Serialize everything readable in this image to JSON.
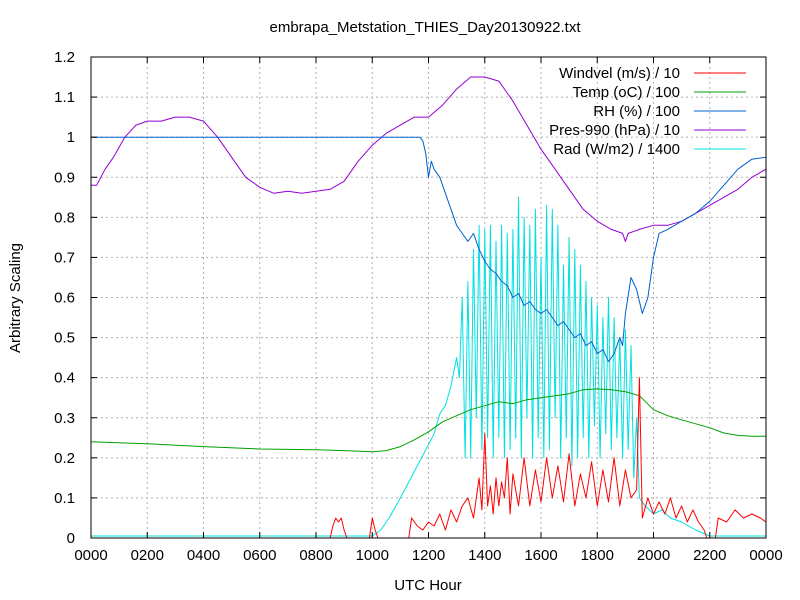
{
  "chart_data": {
    "type": "line",
    "title": "embrapa_Metstation_THIES_Day20130922.txt",
    "xlabel": "UTC Hour",
    "ylabel": "Arbitrary Scaling",
    "xlim": [
      0,
      24
    ],
    "ylim": [
      0,
      1.2
    ],
    "x_ticks": [
      "0000",
      "0200",
      "0400",
      "0600",
      "0800",
      "1000",
      "1200",
      "1400",
      "1600",
      "1800",
      "2000",
      "2200",
      "0000"
    ],
    "y_ticks": [
      "0",
      "0.1",
      "0.2",
      "0.3",
      "0.4",
      "0.5",
      "0.6",
      "0.7",
      "0.8",
      "0.9",
      "1",
      "1.1",
      "1.2"
    ],
    "grid": true,
    "legend_position": "top-right",
    "series": [
      {
        "name": "Windvel (m/s) / 10",
        "color": "#ff0000",
        "points": [
          [
            0,
            0
          ],
          [
            8.5,
            0
          ],
          [
            8.6,
            0.03
          ],
          [
            8.7,
            0.05
          ],
          [
            8.8,
            0.04
          ],
          [
            8.9,
            0.05
          ],
          [
            9.0,
            0.02
          ],
          [
            9.1,
            0
          ],
          [
            9.9,
            0
          ],
          [
            10.0,
            0.05
          ],
          [
            10.1,
            0.02
          ],
          [
            10.2,
            0
          ],
          [
            11.3,
            0
          ],
          [
            11.4,
            0.05
          ],
          [
            11.6,
            0.03
          ],
          [
            11.8,
            0.02
          ],
          [
            12.0,
            0.04
          ],
          [
            12.2,
            0.03
          ],
          [
            12.4,
            0.06
          ],
          [
            12.6,
            0.02
          ],
          [
            12.8,
            0.07
          ],
          [
            13.0,
            0.04
          ],
          [
            13.2,
            0.08
          ],
          [
            13.4,
            0.1
          ],
          [
            13.6,
            0.05
          ],
          [
            13.8,
            0.15
          ],
          [
            13.9,
            0.07
          ],
          [
            14.0,
            0.26
          ],
          [
            14.1,
            0.08
          ],
          [
            14.2,
            0.13
          ],
          [
            14.3,
            0.06
          ],
          [
            14.4,
            0.15
          ],
          [
            14.5,
            0.08
          ],
          [
            14.6,
            0.14
          ],
          [
            14.7,
            0.1
          ],
          [
            14.8,
            0.2
          ],
          [
            14.9,
            0.06
          ],
          [
            15.0,
            0.16
          ],
          [
            15.2,
            0.08
          ],
          [
            15.4,
            0.2
          ],
          [
            15.6,
            0.08
          ],
          [
            15.8,
            0.17
          ],
          [
            16.0,
            0.09
          ],
          [
            16.2,
            0.2
          ],
          [
            16.4,
            0.1
          ],
          [
            16.6,
            0.18
          ],
          [
            16.8,
            0.09
          ],
          [
            17.0,
            0.21
          ],
          [
            17.2,
            0.08
          ],
          [
            17.4,
            0.16
          ],
          [
            17.6,
            0.1
          ],
          [
            17.8,
            0.19
          ],
          [
            18.0,
            0.08
          ],
          [
            18.2,
            0.17
          ],
          [
            18.4,
            0.09
          ],
          [
            18.6,
            0.2
          ],
          [
            18.8,
            0.08
          ],
          [
            19.0,
            0.17
          ],
          [
            19.2,
            0.1
          ],
          [
            19.4,
            0.12
          ],
          [
            19.5,
            0.4
          ],
          [
            19.6,
            0.05
          ],
          [
            19.8,
            0.1
          ],
          [
            20.0,
            0.06
          ],
          [
            20.2,
            0.09
          ],
          [
            20.4,
            0.06
          ],
          [
            20.6,
            0.1
          ],
          [
            20.8,
            0.05
          ],
          [
            21.0,
            0.08
          ],
          [
            21.2,
            0.04
          ],
          [
            21.4,
            0.07
          ],
          [
            21.6,
            0.04
          ],
          [
            21.8,
            0.02
          ],
          [
            21.9,
            0
          ],
          [
            22.2,
            0
          ],
          [
            22.3,
            0.05
          ],
          [
            22.6,
            0.04
          ],
          [
            22.9,
            0.07
          ],
          [
            23.2,
            0.05
          ],
          [
            23.5,
            0.06
          ],
          [
            23.8,
            0.05
          ],
          [
            24,
            0.04
          ]
        ]
      },
      {
        "name": "Temp (oC) / 100",
        "color": "#00a000",
        "points": [
          [
            0,
            0.24
          ],
          [
            2,
            0.235
          ],
          [
            4,
            0.228
          ],
          [
            6,
            0.222
          ],
          [
            8,
            0.22
          ],
          [
            9,
            0.218
          ],
          [
            10,
            0.215
          ],
          [
            10.5,
            0.218
          ],
          [
            11,
            0.228
          ],
          [
            11.5,
            0.245
          ],
          [
            12,
            0.265
          ],
          [
            12.5,
            0.29
          ],
          [
            13,
            0.305
          ],
          [
            13.5,
            0.32
          ],
          [
            14,
            0.33
          ],
          [
            14.5,
            0.34
          ],
          [
            15,
            0.335
          ],
          [
            15.5,
            0.345
          ],
          [
            16,
            0.35
          ],
          [
            16.5,
            0.355
          ],
          [
            17,
            0.36
          ],
          [
            17.5,
            0.37
          ],
          [
            18,
            0.372
          ],
          [
            18.5,
            0.37
          ],
          [
            19,
            0.365
          ],
          [
            19.5,
            0.355
          ],
          [
            20,
            0.32
          ],
          [
            20.5,
            0.305
          ],
          [
            21,
            0.295
          ],
          [
            21.5,
            0.285
          ],
          [
            22,
            0.275
          ],
          [
            22.5,
            0.262
          ],
          [
            23,
            0.256
          ],
          [
            23.5,
            0.254
          ],
          [
            24,
            0.254
          ]
        ]
      },
      {
        "name": "RH (%) / 100",
        "color": "#0060d0",
        "points": [
          [
            0,
            1.0
          ],
          [
            11.7,
            1.0
          ],
          [
            11.8,
            0.99
          ],
          [
            11.9,
            0.96
          ],
          [
            12.0,
            0.9
          ],
          [
            12.1,
            0.94
          ],
          [
            12.2,
            0.92
          ],
          [
            12.4,
            0.9
          ],
          [
            12.6,
            0.86
          ],
          [
            12.8,
            0.82
          ],
          [
            13.0,
            0.78
          ],
          [
            13.2,
            0.76
          ],
          [
            13.4,
            0.74
          ],
          [
            13.6,
            0.76
          ],
          [
            13.8,
            0.72
          ],
          [
            14.0,
            0.69
          ],
          [
            14.2,
            0.67
          ],
          [
            14.4,
            0.66
          ],
          [
            14.6,
            0.64
          ],
          [
            14.8,
            0.63
          ],
          [
            15.0,
            0.6
          ],
          [
            15.2,
            0.61
          ],
          [
            15.4,
            0.58
          ],
          [
            15.6,
            0.59
          ],
          [
            15.8,
            0.57
          ],
          [
            16.0,
            0.56
          ],
          [
            16.2,
            0.57
          ],
          [
            16.4,
            0.55
          ],
          [
            16.6,
            0.53
          ],
          [
            16.8,
            0.54
          ],
          [
            17.0,
            0.52
          ],
          [
            17.2,
            0.5
          ],
          [
            17.4,
            0.51
          ],
          [
            17.6,
            0.48
          ],
          [
            17.8,
            0.49
          ],
          [
            18.0,
            0.46
          ],
          [
            18.2,
            0.47
          ],
          [
            18.4,
            0.44
          ],
          [
            18.6,
            0.46
          ],
          [
            18.8,
            0.5
          ],
          [
            18.9,
            0.48
          ],
          [
            19.0,
            0.56
          ],
          [
            19.2,
            0.65
          ],
          [
            19.4,
            0.62
          ],
          [
            19.6,
            0.56
          ],
          [
            19.8,
            0.6
          ],
          [
            20.0,
            0.7
          ],
          [
            20.2,
            0.76
          ],
          [
            20.5,
            0.77
          ],
          [
            21.0,
            0.79
          ],
          [
            21.5,
            0.81
          ],
          [
            22.0,
            0.84
          ],
          [
            22.5,
            0.88
          ],
          [
            23.0,
            0.92
          ],
          [
            23.5,
            0.945
          ],
          [
            24,
            0.95
          ]
        ]
      },
      {
        "name": "Pres-990 (hPa) / 10",
        "color": "#9400d3",
        "points": [
          [
            0,
            0.88
          ],
          [
            0.2,
            0.88
          ],
          [
            0.5,
            0.92
          ],
          [
            0.8,
            0.95
          ],
          [
            1.2,
            1.0
          ],
          [
            1.6,
            1.03
          ],
          [
            2.0,
            1.04
          ],
          [
            2.5,
            1.04
          ],
          [
            3.0,
            1.05
          ],
          [
            3.5,
            1.05
          ],
          [
            4.0,
            1.04
          ],
          [
            4.5,
            1.0
          ],
          [
            5.0,
            0.95
          ],
          [
            5.5,
            0.9
          ],
          [
            6.0,
            0.875
          ],
          [
            6.5,
            0.86
          ],
          [
            7.0,
            0.865
          ],
          [
            7.5,
            0.86
          ],
          [
            8.0,
            0.865
          ],
          [
            8.5,
            0.87
          ],
          [
            9.0,
            0.89
          ],
          [
            9.5,
            0.94
          ],
          [
            10.0,
            0.98
          ],
          [
            10.5,
            1.01
          ],
          [
            11.0,
            1.03
          ],
          [
            11.5,
            1.05
          ],
          [
            12.0,
            1.05
          ],
          [
            12.5,
            1.08
          ],
          [
            13.0,
            1.12
          ],
          [
            13.5,
            1.15
          ],
          [
            14.0,
            1.15
          ],
          [
            14.5,
            1.14
          ],
          [
            15.0,
            1.09
          ],
          [
            15.5,
            1.03
          ],
          [
            16.0,
            0.97
          ],
          [
            16.5,
            0.92
          ],
          [
            17.0,
            0.87
          ],
          [
            17.5,
            0.82
          ],
          [
            18.0,
            0.79
          ],
          [
            18.5,
            0.77
          ],
          [
            18.9,
            0.76
          ],
          [
            19.0,
            0.74
          ],
          [
            19.1,
            0.76
          ],
          [
            19.5,
            0.77
          ],
          [
            20.0,
            0.78
          ],
          [
            20.5,
            0.78
          ],
          [
            21.0,
            0.79
          ],
          [
            21.5,
            0.81
          ],
          [
            22.0,
            0.83
          ],
          [
            22.5,
            0.85
          ],
          [
            23.0,
            0.87
          ],
          [
            23.5,
            0.9
          ],
          [
            24,
            0.92
          ]
        ]
      },
      {
        "name": "Rad (W/m2) / 1400",
        "color": "#00e0e0",
        "points": [
          [
            0,
            0.005
          ],
          [
            10.0,
            0.005
          ],
          [
            10.3,
            0.02
          ],
          [
            10.6,
            0.05
          ],
          [
            11.0,
            0.1
          ],
          [
            11.3,
            0.14
          ],
          [
            11.6,
            0.18
          ],
          [
            11.9,
            0.22
          ],
          [
            12.2,
            0.26
          ],
          [
            12.4,
            0.31
          ],
          [
            12.6,
            0.33
          ],
          [
            12.8,
            0.38
          ],
          [
            13.0,
            0.45
          ],
          [
            13.1,
            0.4
          ],
          [
            13.2,
            0.6
          ],
          [
            13.3,
            0.2
          ],
          [
            13.4,
            0.64
          ],
          [
            13.5,
            0.2
          ],
          [
            13.6,
            0.72
          ],
          [
            13.7,
            0.3
          ],
          [
            13.8,
            0.78
          ],
          [
            13.9,
            0.22
          ],
          [
            14.0,
            0.77
          ],
          [
            14.1,
            0.25
          ],
          [
            14.2,
            0.78
          ],
          [
            14.3,
            0.2
          ],
          [
            14.4,
            0.74
          ],
          [
            14.5,
            0.25
          ],
          [
            14.6,
            0.78
          ],
          [
            14.7,
            0.2
          ],
          [
            14.8,
            0.76
          ],
          [
            14.9,
            0.22
          ],
          [
            15.0,
            0.77
          ],
          [
            15.1,
            0.25
          ],
          [
            15.2,
            0.85
          ],
          [
            15.3,
            0.2
          ],
          [
            15.4,
            0.8
          ],
          [
            15.5,
            0.3
          ],
          [
            15.6,
            0.78
          ],
          [
            15.7,
            0.2
          ],
          [
            15.8,
            0.82
          ],
          [
            15.9,
            0.25
          ],
          [
            16.0,
            0.7
          ],
          [
            16.1,
            0.2
          ],
          [
            16.2,
            0.83
          ],
          [
            16.3,
            0.22
          ],
          [
            16.4,
            0.82
          ],
          [
            16.5,
            0.3
          ],
          [
            16.6,
            0.78
          ],
          [
            16.7,
            0.2
          ],
          [
            16.8,
            0.68
          ],
          [
            16.9,
            0.25
          ],
          [
            17.0,
            0.75
          ],
          [
            17.1,
            0.18
          ],
          [
            17.2,
            0.72
          ],
          [
            17.3,
            0.2
          ],
          [
            17.4,
            0.68
          ],
          [
            17.5,
            0.25
          ],
          [
            17.6,
            0.64
          ],
          [
            17.7,
            0.2
          ],
          [
            17.8,
            0.6
          ],
          [
            17.9,
            0.28
          ],
          [
            18.0,
            0.58
          ],
          [
            18.1,
            0.2
          ],
          [
            18.2,
            0.55
          ],
          [
            18.3,
            0.26
          ],
          [
            18.4,
            0.6
          ],
          [
            18.5,
            0.22
          ],
          [
            18.6,
            0.55
          ],
          [
            18.7,
            0.25
          ],
          [
            18.8,
            0.5
          ],
          [
            18.9,
            0.2
          ],
          [
            19.0,
            0.52
          ],
          [
            19.1,
            0.22
          ],
          [
            19.2,
            0.48
          ],
          [
            19.3,
            0.15
          ],
          [
            19.4,
            0.3
          ],
          [
            19.5,
            0.1
          ],
          [
            19.7,
            0.08
          ],
          [
            20.0,
            0.06
          ],
          [
            20.3,
            0.07
          ],
          [
            20.6,
            0.05
          ],
          [
            21.0,
            0.04
          ],
          [
            21.5,
            0.02
          ],
          [
            22.0,
            0.005
          ],
          [
            24,
            0.005
          ]
        ]
      }
    ]
  }
}
